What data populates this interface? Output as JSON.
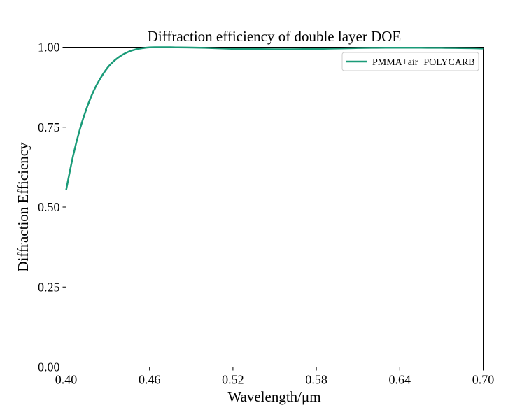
{
  "chart_data": {
    "type": "line",
    "title": "Diffraction efficiency of double layer DOE",
    "xlabel": "Wavelength/μm",
    "ylabel": "Diffraction Efficiency",
    "xlim": [
      0.4,
      0.7
    ],
    "ylim": [
      0.0,
      1.0
    ],
    "x_ticks": [
      "0.40",
      "0.46",
      "0.52",
      "0.58",
      "0.64",
      "0.70"
    ],
    "y_ticks": [
      "0.00",
      "0.25",
      "0.50",
      "0.75",
      "1.00"
    ],
    "legend_position": "top-right",
    "grid": false,
    "series": [
      {
        "name": "PMMA+air+POLYCARB",
        "color": "#1a9b78",
        "x": [
          0.4,
          0.405,
          0.41,
          0.415,
          0.42,
          0.425,
          0.43,
          0.435,
          0.44,
          0.445,
          0.45,
          0.455,
          0.46,
          0.465,
          0.47,
          0.475,
          0.48,
          0.49,
          0.5,
          0.51,
          0.52,
          0.53,
          0.54,
          0.55,
          0.56,
          0.57,
          0.58,
          0.59,
          0.6,
          0.61,
          0.62,
          0.63,
          0.64,
          0.65,
          0.66,
          0.67,
          0.68,
          0.69,
          0.7
        ],
        "y": [
          0.553,
          0.66,
          0.745,
          0.812,
          0.865,
          0.905,
          0.937,
          0.959,
          0.975,
          0.986,
          0.993,
          0.997,
          0.9995,
          1.0,
          1.0,
          1.0,
          0.9995,
          0.999,
          0.998,
          0.9965,
          0.995,
          0.9945,
          0.994,
          0.9935,
          0.9935,
          0.994,
          0.9945,
          0.9955,
          0.9965,
          0.9975,
          0.998,
          0.9985,
          0.9985,
          0.9985,
          0.998,
          0.998,
          0.9975,
          0.997,
          0.996
        ]
      }
    ]
  }
}
